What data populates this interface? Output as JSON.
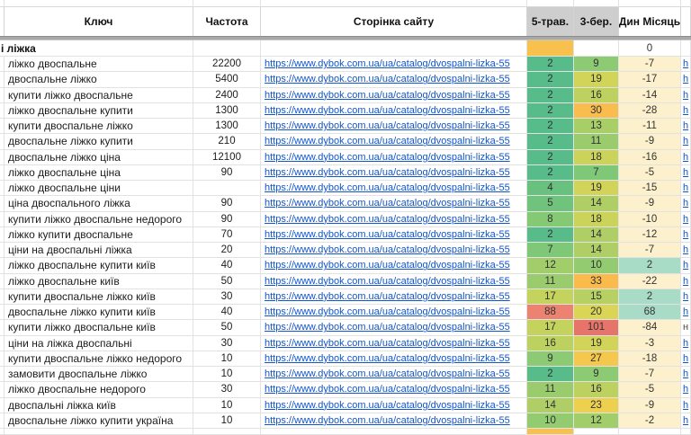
{
  "header": {
    "key": "Ключ",
    "freq": "Частота",
    "page": "Сторінка сайту",
    "may": "5-трав.",
    "mar": "3-бер.",
    "dyn": "Дин Місяць"
  },
  "category": {
    "label": "і ліжка",
    "dyn": "0",
    "may_color": "#f8c04c"
  },
  "footer": {
    "may_color": "#f8c04c"
  },
  "url": "https://www.dybok.com.ua/ua/catalog/dvospalni-lizka-55",
  "colors": {
    "link_blue": "#1155cc",
    "scale_green": "#57bb8a",
    "scale_orange": "#f9bd4e",
    "scale_red": "#e7746a",
    "dyn_negative_bg": "#fdf0cd",
    "dyn_positive_bg": "#a8dcc6",
    "header_gray_bg": "#cecece"
  },
  "rows": [
    {
      "key": "ліжко двоспальне",
      "freq": "22200",
      "may": "2",
      "mar": "9",
      "dyn": "-7",
      "may_c": "#57bb8a",
      "mar_c": "#8cca73",
      "dyn_c": "#fdf0cd",
      "edge": "h"
    },
    {
      "key": "двоспальне ліжко",
      "freq": "5400",
      "may": "2",
      "mar": "19",
      "dyn": "-17",
      "may_c": "#57bb8a",
      "mar_c": "#d2d459",
      "dyn_c": "#fdf0cd",
      "edge": "h"
    },
    {
      "key": "купити ліжко двоспальне",
      "freq": "2400",
      "may": "2",
      "mar": "16",
      "dyn": "-14",
      "may_c": "#57bb8a",
      "mar_c": "#bdd161",
      "dyn_c": "#fdf0cd",
      "edge": "h"
    },
    {
      "key": "ліжко двоспальне купити",
      "freq": "1300",
      "may": "2",
      "mar": "30",
      "dyn": "-28",
      "may_c": "#57bb8a",
      "mar_c": "#f9bd4e",
      "dyn_c": "#fdf0cd",
      "edge": "h"
    },
    {
      "key": "купити двоспальне ліжко",
      "freq": "1300",
      "may": "2",
      "mar": "13",
      "dyn": "-11",
      "may_c": "#57bb8a",
      "mar_c": "#a8ce68",
      "dyn_c": "#fdf0cd",
      "edge": "h"
    },
    {
      "key": "двоспальне ліжко купити",
      "freq": "210",
      "may": "2",
      "mar": "11",
      "dyn": "-9",
      "may_c": "#57bb8a",
      "mar_c": "#9acc6e",
      "dyn_c": "#fdf0cd",
      "edge": "h"
    },
    {
      "key": "двоспальне ліжко ціна",
      "freq": "12100",
      "may": "2",
      "mar": "18",
      "dyn": "-16",
      "may_c": "#57bb8a",
      "mar_c": "#cbd35b",
      "dyn_c": "#fdf0cd",
      "edge": "h"
    },
    {
      "key": "ліжко двоспальне ціна",
      "freq": "90",
      "may": "2",
      "mar": "7",
      "dyn": "-5",
      "may_c": "#57bb8a",
      "mar_c": "#7ec878",
      "dyn_c": "#fdf0cd",
      "edge": "h"
    },
    {
      "key": "ліжко двоспальне ціни",
      "freq": "",
      "may": "4",
      "mar": "19",
      "dyn": "-15",
      "may_c": "#68c17f",
      "mar_c": "#d2d459",
      "dyn_c": "#fdf0cd",
      "edge": "h"
    },
    {
      "key": "ціна двоспального ліжка",
      "freq": "90",
      "may": "5",
      "mar": "14",
      "dyn": "-9",
      "may_c": "#70c37c",
      "mar_c": "#afcf66",
      "dyn_c": "#fdf0cd",
      "edge": "h"
    },
    {
      "key": "купити ліжко двоспальне недорого",
      "freq": "90",
      "may": "8",
      "mar": "18",
      "dyn": "-10",
      "may_c": "#85c975",
      "mar_c": "#cbd35b",
      "dyn_c": "#fdf0cd",
      "edge": "h"
    },
    {
      "key": "ліжко купити двоспальне",
      "freq": "70",
      "may": "2",
      "mar": "14",
      "dyn": "-12",
      "may_c": "#57bb8a",
      "mar_c": "#afcf66",
      "dyn_c": "#fdf0cd",
      "edge": "h"
    },
    {
      "key": "ціни на двоспальні ліжка",
      "freq": "20",
      "may": "7",
      "mar": "14",
      "dyn": "-7",
      "may_c": "#7ec878",
      "mar_c": "#afcf66",
      "dyn_c": "#fdf0cd",
      "edge": "h"
    },
    {
      "key": "ліжко двоспальне купити київ",
      "freq": "40",
      "may": "12",
      "mar": "10",
      "dyn": "2",
      "may_c": "#a1cd6b",
      "mar_c": "#93cb70",
      "dyn_c": "#a8dcc6",
      "edge": "h"
    },
    {
      "key": "ліжко двоспальне київ",
      "freq": "50",
      "may": "11",
      "mar": "33",
      "dyn": "-22",
      "may_c": "#9acc6e",
      "mar_c": "#fabb4b",
      "dyn_c": "#fdf0cd",
      "edge": "h"
    },
    {
      "key": "купити двоспальне ліжко київ",
      "freq": "30",
      "may": "17",
      "mar": "15",
      "dyn": "2",
      "may_c": "#c4d25e",
      "mar_c": "#b6d063",
      "dyn_c": "#a8dcc6",
      "edge": "h"
    },
    {
      "key": "двоспальне ліжко купити київ",
      "freq": "40",
      "may": "88",
      "mar": "20",
      "dyn": "68",
      "may_c": "#ec8270",
      "mar_c": "#dad556",
      "dyn_c": "#a8dcc6",
      "edge": "h"
    },
    {
      "key": "купити ліжко двоспальне київ",
      "freq": "50",
      "may": "17",
      "mar": "101",
      "dyn": "-84",
      "may_c": "#c4d25e",
      "mar_c": "#e7746a",
      "dyn_c": "#fdf0cd",
      "edge": "н",
      "edge_c": "#54443c"
    },
    {
      "key": "ціни на ліжка двоспальні",
      "freq": "30",
      "may": "16",
      "mar": "19",
      "dyn": "-3",
      "may_c": "#bdd161",
      "mar_c": "#d2d459",
      "dyn_c": "#fdf0cd",
      "edge": "h"
    },
    {
      "key": "купити двоспальне ліжко недорого",
      "freq": "10",
      "may": "9",
      "mar": "27",
      "dyn": "-18",
      "may_c": "#8cca73",
      "mar_c": "#f4c84c",
      "dyn_c": "#fdf0cd",
      "edge": "h"
    },
    {
      "key": "замовити двоспальне ліжко",
      "freq": "10",
      "may": "2",
      "mar": "9",
      "dyn": "-7",
      "may_c": "#57bb8a",
      "mar_c": "#8cca73",
      "dyn_c": "#fdf0cd",
      "edge": "h"
    },
    {
      "key": "ліжко двоспальне недорого",
      "freq": "30",
      "may": "11",
      "mar": "16",
      "dyn": "-5",
      "may_c": "#9acc6e",
      "mar_c": "#bdd161",
      "dyn_c": "#fdf0cd",
      "edge": "h"
    },
    {
      "key": "двоспальні ліжка київ",
      "freq": "10",
      "may": "14",
      "mar": "23",
      "dyn": "-9",
      "may_c": "#afcf66",
      "mar_c": "#edd04e",
      "dyn_c": "#fdf0cd",
      "edge": "h"
    },
    {
      "key": "двоспальне ліжко купити україна",
      "freq": "10",
      "may": "10",
      "mar": "12",
      "dyn": "-2",
      "may_c": "#93cb70",
      "mar_c": "#a1cd6b",
      "dyn_c": "#fdf0cd",
      "edge": "h"
    }
  ]
}
